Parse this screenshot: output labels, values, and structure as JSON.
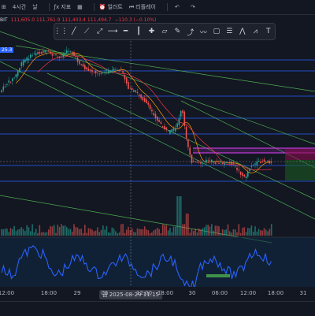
{
  "toolbar": {
    "timeframe": "4시간",
    "day_label": "날",
    "indicators_label": "지표",
    "alert_label": "얼러트",
    "replay_label": "리플레이",
    "undo_icon": "undo-icon",
    "redo_icon": "redo-icon"
  },
  "legend": {
    "exchange_suffix": "BIT",
    "ohlc": "111,605.0  111,761.9  111,403.4  111,494.7",
    "change": "−110.3 (−0.10%)"
  },
  "price_tag": "25.3",
  "axis": {
    "ticks": [
      {
        "label": "12:00",
        "x": 8
      },
      {
        "label": "18:00",
        "x": 62
      },
      {
        "label": "29",
        "x": 98
      },
      {
        "label": "06",
        "x": 133
      },
      {
        "label": "12:00",
        "x": 183
      },
      {
        "label": "18:00",
        "x": 210
      },
      {
        "label": "30",
        "x": 244
      },
      {
        "label": "06:00",
        "x": 279
      },
      {
        "label": "12:00",
        "x": 315
      },
      {
        "label": "18:00",
        "x": 350
      },
      {
        "label": "31",
        "x": 385
      }
    ],
    "cursor": "금 2025-08-29  11:15"
  },
  "colors": {
    "up": "#26a69a",
    "down": "#ef5350",
    "rsi": "#2962ff",
    "hline": "#2962ff",
    "trend": "#4caf50",
    "purple": "#9c27b0"
  }
}
